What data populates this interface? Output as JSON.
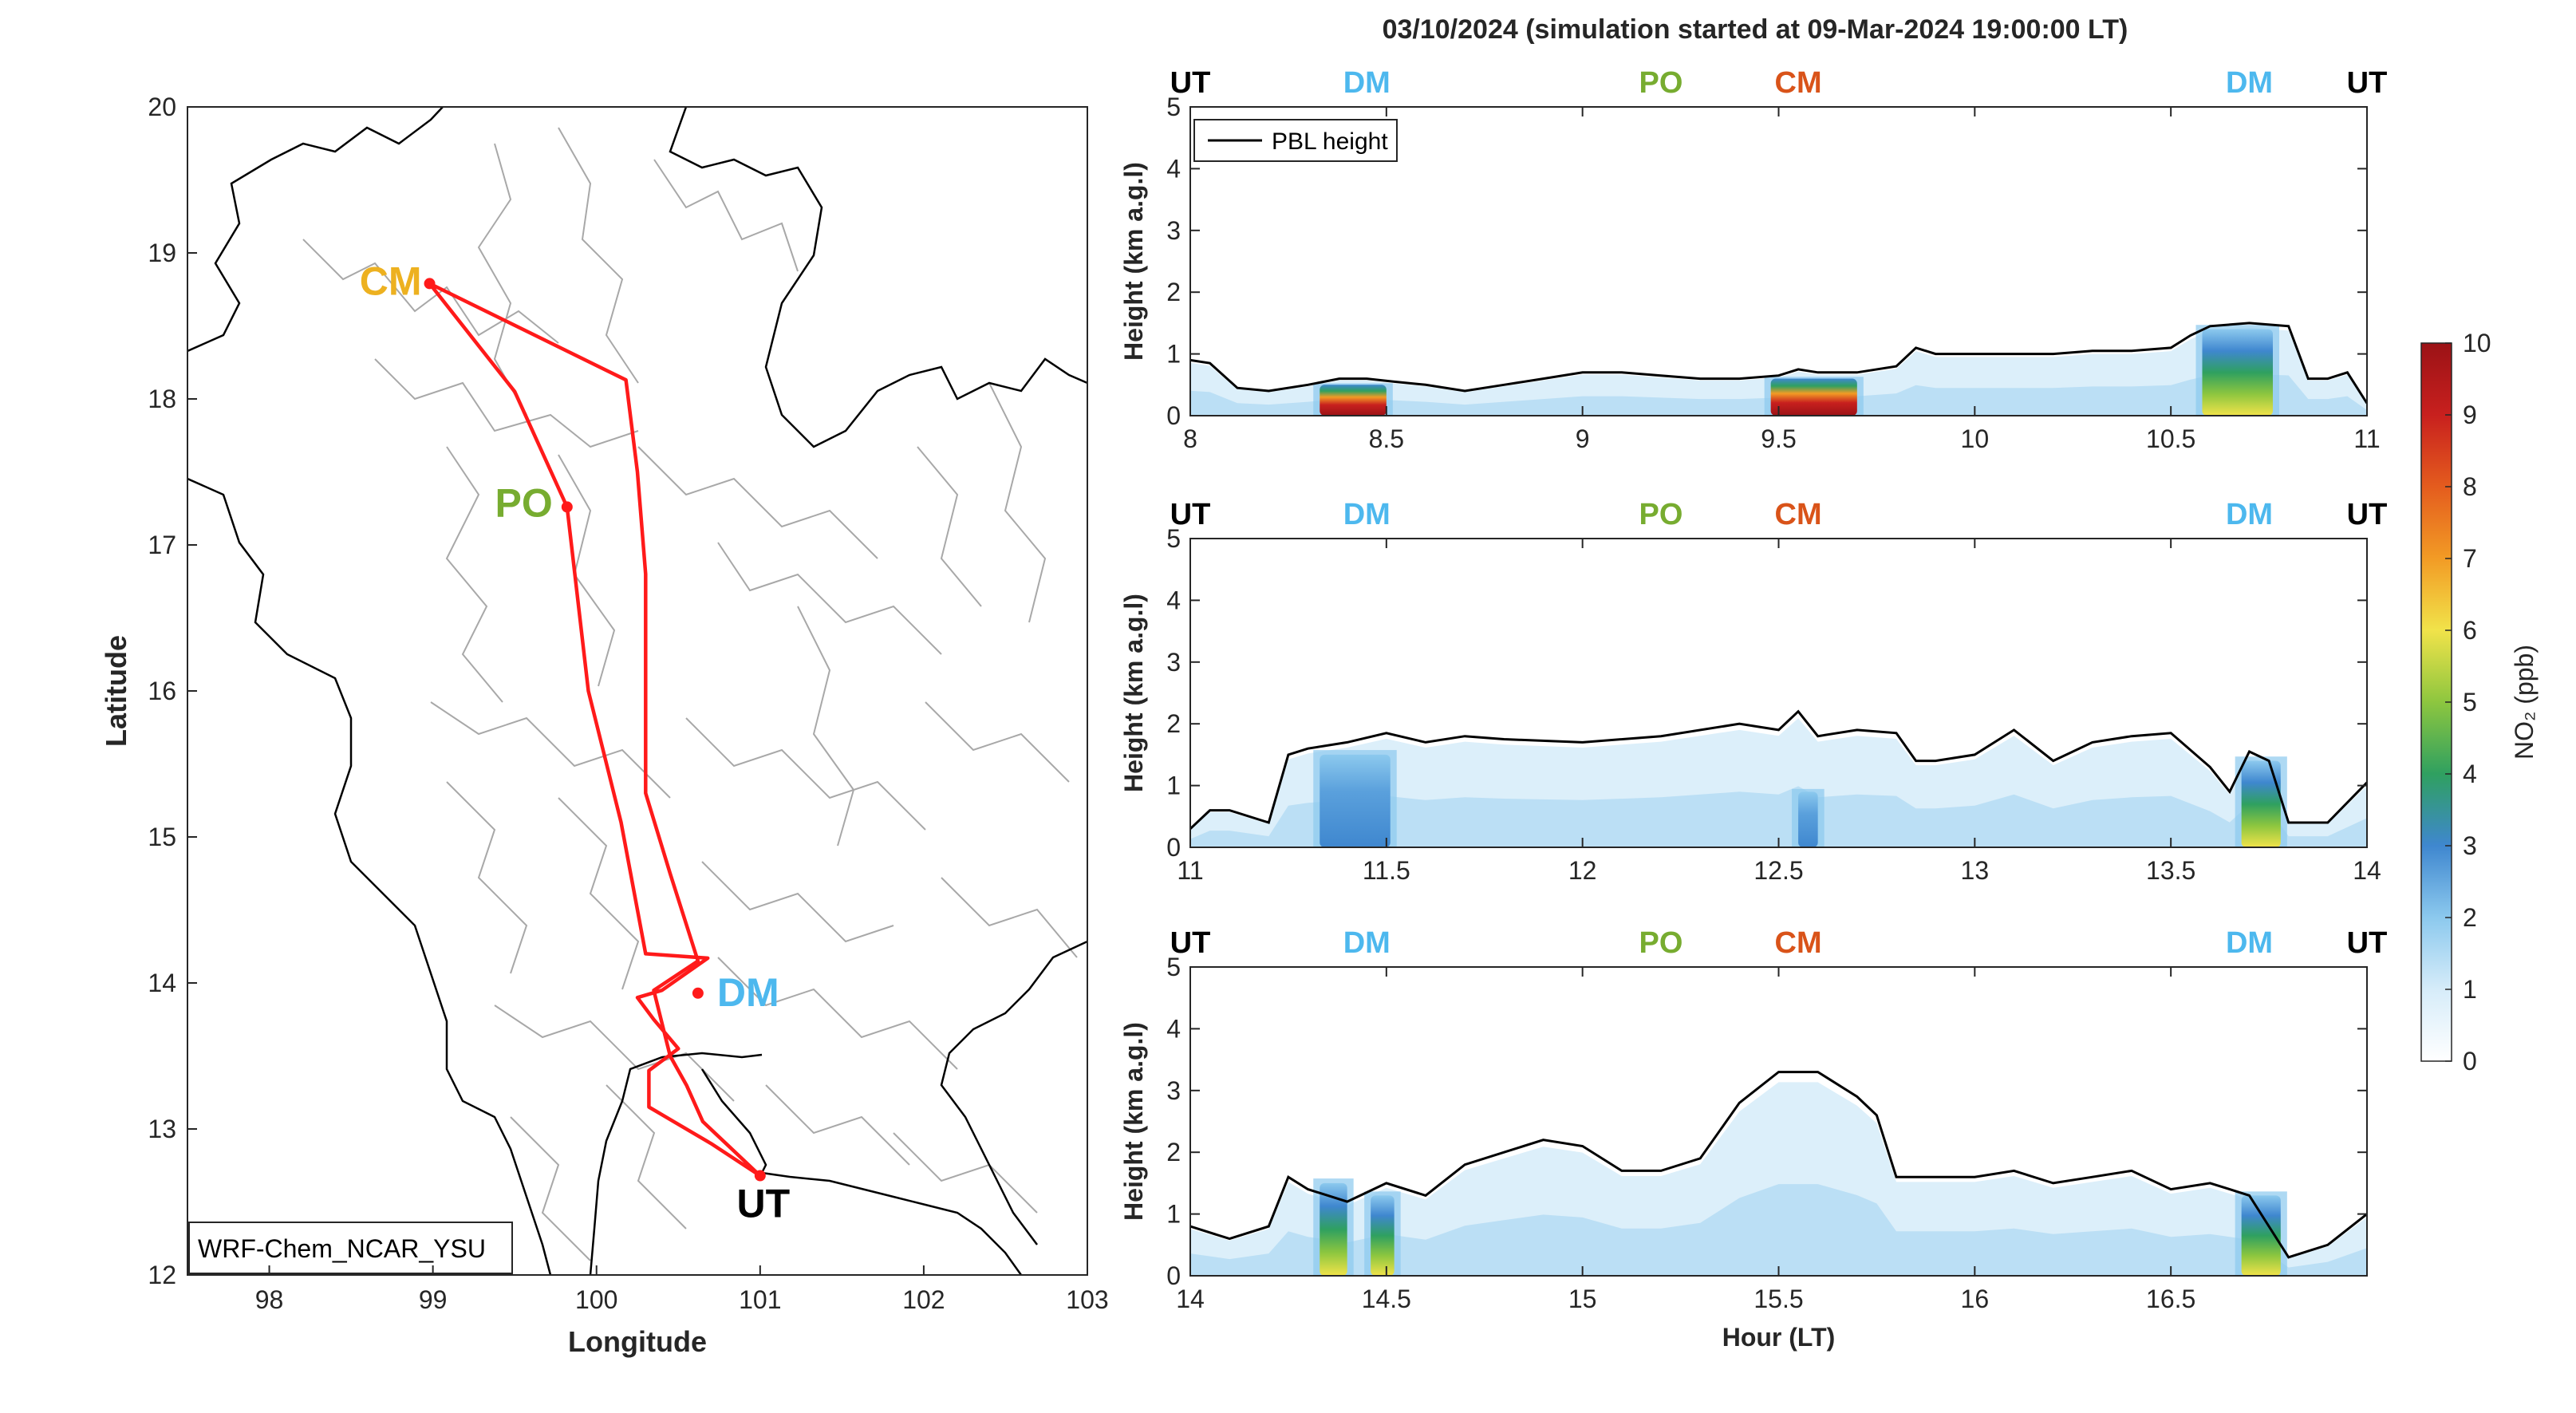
{
  "title": "03/10/2024 (simulation started at 09-Mar-2024 19:00:00 LT)",
  "colors": {
    "route": "#ff1a1a",
    "UT": "#000000",
    "DM": "#4db8ee",
    "PO": "#77ac30",
    "CM_map": "#edb120",
    "CM_panel": "#d95319",
    "boundary_country": "#000000",
    "boundary_province": "#a8a8a8"
  },
  "map": {
    "xlabel": "Longitude",
    "ylabel": "Latitude",
    "xlim": [
      97.5,
      103
    ],
    "ylim": [
      12,
      20
    ],
    "xticks": [
      "98",
      "99",
      "100",
      "101",
      "102",
      "103"
    ],
    "yticks": [
      "12",
      "13",
      "14",
      "15",
      "16",
      "17",
      "18",
      "19",
      "20"
    ],
    "model_label": "WRF-Chem_NCAR_YSU",
    "sites": [
      {
        "id": "CM",
        "label": "CM",
        "lon": 98.98,
        "lat": 18.79
      },
      {
        "id": "PO",
        "label": "PO",
        "lon": 99.82,
        "lat": 17.26
      },
      {
        "id": "DM",
        "label": "DM",
        "lon": 100.62,
        "lat": 13.93
      },
      {
        "id": "UT",
        "label": "UT",
        "lon": 101.0,
        "lat": 12.68
      }
    ],
    "route": [
      [
        101.0,
        12.68
      ],
      [
        100.65,
        13.05
      ],
      [
        100.55,
        13.3
      ],
      [
        100.45,
        13.5
      ],
      [
        100.35,
        13.95
      ],
      [
        100.62,
        14.15
      ],
      [
        100.45,
        14.75
      ],
      [
        100.3,
        15.3
      ],
      [
        100.3,
        16.8
      ],
      [
        100.25,
        17.5
      ],
      [
        100.18,
        18.13
      ],
      [
        98.98,
        18.79
      ],
      [
        99.5,
        18.05
      ],
      [
        99.82,
        17.26
      ],
      [
        99.95,
        16.0
      ],
      [
        100.15,
        15.1
      ],
      [
        100.3,
        14.2
      ],
      [
        100.68,
        14.17
      ],
      [
        100.4,
        13.95
      ],
      [
        100.25,
        13.9
      ],
      [
        100.35,
        13.75
      ],
      [
        100.5,
        13.55
      ],
      [
        100.32,
        13.4
      ],
      [
        100.32,
        13.15
      ],
      [
        100.7,
        12.9
      ],
      [
        101.0,
        12.68
      ]
    ]
  },
  "panel_top_labels": [
    "UT",
    "DM",
    "PO",
    "CM",
    "DM",
    "UT"
  ],
  "legend": {
    "line_label": "PBL height"
  },
  "colorbar": {
    "label": "NO₂ (ppb)",
    "ticks": [
      "0",
      "1",
      "2",
      "3",
      "4",
      "5",
      "6",
      "7",
      "8",
      "9",
      "10"
    ]
  },
  "chart_data": [
    {
      "type": "heatmap",
      "title": "",
      "ylabel": "Height (km a.g.l)",
      "xlabel": "",
      "xlim": [
        8,
        11
      ],
      "ylim": [
        0,
        5
      ],
      "xticks": [
        "8",
        "8.5",
        "9",
        "9.5",
        "10",
        "10.5",
        "11"
      ],
      "yticks": [
        "0",
        "1",
        "2",
        "3",
        "4",
        "5"
      ],
      "site_label_hours": [
        8.0,
        8.45,
        9.2,
        9.55,
        10.7,
        11.0
      ],
      "series": [
        {
          "name": "PBL height",
          "x": [
            8.0,
            8.05,
            8.12,
            8.2,
            8.3,
            8.38,
            8.45,
            8.52,
            8.6,
            8.7,
            8.8,
            8.9,
            9.0,
            9.1,
            9.2,
            9.3,
            9.4,
            9.5,
            9.55,
            9.6,
            9.7,
            9.8,
            9.85,
            9.9,
            10.0,
            10.1,
            10.2,
            10.3,
            10.4,
            10.5,
            10.55,
            10.6,
            10.7,
            10.8,
            10.85,
            10.9,
            10.95,
            11.0
          ],
          "y": [
            0.9,
            0.85,
            0.45,
            0.4,
            0.5,
            0.6,
            0.6,
            0.55,
            0.5,
            0.4,
            0.5,
            0.6,
            0.7,
            0.7,
            0.65,
            0.6,
            0.6,
            0.65,
            0.75,
            0.7,
            0.7,
            0.8,
            1.1,
            1.0,
            1.0,
            1.0,
            1.0,
            1.05,
            1.05,
            1.1,
            1.3,
            1.45,
            1.5,
            1.45,
            0.6,
            0.6,
            0.7,
            0.2
          ]
        }
      ],
      "no2_features": [
        {
          "hour_start": 8.33,
          "hour_end": 8.5,
          "top_km": 0.5,
          "peak_ppb": 10
        },
        {
          "hour_start": 9.48,
          "hour_end": 9.7,
          "top_km": 0.6,
          "peak_ppb": 10
        },
        {
          "hour_start": 10.58,
          "hour_end": 10.76,
          "top_km": 1.4,
          "peak_ppb": 5
        }
      ]
    },
    {
      "type": "heatmap",
      "title": "",
      "ylabel": "Height (km a.g.l)",
      "xlabel": "",
      "xlim": [
        11,
        14
      ],
      "ylim": [
        0,
        5
      ],
      "xticks": [
        "11",
        "11.5",
        "12",
        "12.5",
        "13",
        "13.5",
        "14"
      ],
      "yticks": [
        "0",
        "1",
        "2",
        "3",
        "4",
        "5"
      ],
      "site_label_hours": [
        11.0,
        11.45,
        12.2,
        12.55,
        13.7,
        14.0
      ],
      "series": [
        {
          "name": "PBL height",
          "x": [
            11.0,
            11.05,
            11.1,
            11.2,
            11.25,
            11.3,
            11.4,
            11.5,
            11.6,
            11.7,
            11.8,
            12.0,
            12.2,
            12.4,
            12.5,
            12.55,
            12.6,
            12.7,
            12.8,
            12.85,
            12.9,
            13.0,
            13.1,
            13.2,
            13.3,
            13.4,
            13.5,
            13.6,
            13.65,
            13.7,
            13.75,
            13.8,
            13.9,
            14.0
          ],
          "y": [
            0.3,
            0.6,
            0.6,
            0.4,
            1.5,
            1.6,
            1.7,
            1.85,
            1.7,
            1.8,
            1.75,
            1.7,
            1.8,
            2.0,
            1.9,
            2.2,
            1.8,
            1.9,
            1.85,
            1.4,
            1.4,
            1.5,
            1.9,
            1.4,
            1.7,
            1.8,
            1.85,
            1.3,
            0.9,
            1.55,
            1.4,
            0.4,
            0.4,
            1.05
          ]
        }
      ],
      "no2_features": [
        {
          "hour_start": 11.33,
          "hour_end": 11.51,
          "top_km": 1.5,
          "peak_ppb": 4
        },
        {
          "hour_start": 12.55,
          "hour_end": 12.6,
          "top_km": 0.9,
          "peak_ppb": 3
        },
        {
          "hour_start": 13.68,
          "hour_end": 13.78,
          "top_km": 1.4,
          "peak_ppb": 5
        }
      ]
    },
    {
      "type": "heatmap",
      "title": "",
      "ylabel": "Height (km a.g.l)",
      "xlabel": "Hour (LT)",
      "xlim": [
        14,
        17
      ],
      "ylim": [
        0,
        5
      ],
      "xticks": [
        "14",
        "14.5",
        "15",
        "15.5",
        "16",
        "16.5"
      ],
      "yticks": [
        "0",
        "1",
        "2",
        "3",
        "4",
        "5"
      ],
      "site_label_hours": [
        14.0,
        14.45,
        15.2,
        15.55,
        16.7,
        17.0
      ],
      "series": [
        {
          "name": "PBL height",
          "x": [
            14.0,
            14.1,
            14.2,
            14.25,
            14.3,
            14.4,
            14.5,
            14.6,
            14.7,
            14.8,
            14.9,
            15.0,
            15.1,
            15.2,
            15.3,
            15.4,
            15.5,
            15.6,
            15.7,
            15.75,
            15.8,
            15.9,
            16.0,
            16.1,
            16.2,
            16.3,
            16.4,
            16.5,
            16.6,
            16.65,
            16.7,
            16.8,
            16.9,
            17.0
          ],
          "y": [
            0.8,
            0.6,
            0.8,
            1.6,
            1.4,
            1.2,
            1.5,
            1.3,
            1.8,
            2.0,
            2.2,
            2.1,
            1.7,
            1.7,
            1.9,
            2.8,
            3.3,
            3.3,
            2.9,
            2.6,
            1.6,
            1.6,
            1.6,
            1.7,
            1.5,
            1.6,
            1.7,
            1.4,
            1.5,
            1.4,
            1.3,
            0.3,
            0.5,
            1.0
          ]
        }
      ],
      "no2_features": [
        {
          "hour_start": 14.33,
          "hour_end": 14.4,
          "top_km": 1.5,
          "peak_ppb": 5
        },
        {
          "hour_start": 14.46,
          "hour_end": 14.52,
          "top_km": 1.3,
          "peak_ppb": 5
        },
        {
          "hour_start": 16.68,
          "hour_end": 16.78,
          "top_km": 1.3,
          "peak_ppb": 5
        }
      ]
    }
  ]
}
